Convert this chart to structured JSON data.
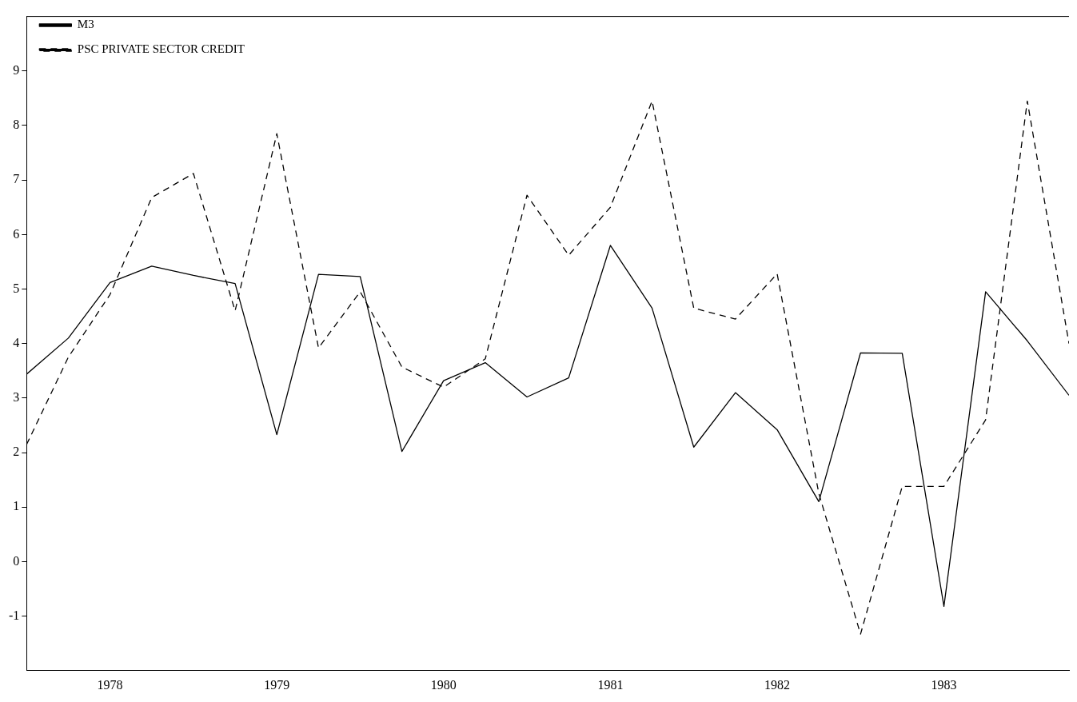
{
  "chart_data": {
    "type": "line",
    "x": [
      1977.5,
      1977.75,
      1978,
      1978.25,
      1978.5,
      1978.75,
      1979,
      1979.25,
      1979.5,
      1979.75,
      1980,
      1980.25,
      1980.5,
      1980.75,
      1981,
      1981.25,
      1981.5,
      1981.75,
      1982,
      1982.25,
      1982.5,
      1982.75,
      1983,
      1983.25,
      1983.5,
      1983.75
    ],
    "series": [
      {
        "name": "M3",
        "color": "#000000",
        "line_style": "solid",
        "values": [
          3.44,
          4.1,
          5.12,
          5.42,
          5.25,
          5.1,
          2.33,
          5.27,
          5.23,
          2.02,
          3.32,
          3.65,
          3.02,
          3.37,
          5.8,
          4.65,
          2.1,
          3.1,
          2.42,
          1.1,
          3.83,
          3.82,
          -0.82,
          4.95,
          4.05,
          3.05
        ]
      },
      {
        "name": "PSC PRIVATE SECTOR CREDIT",
        "color": "#000000",
        "line_style": "dashed",
        "values": [
          2.15,
          3.75,
          4.9,
          6.68,
          7.12,
          4.6,
          7.85,
          3.92,
          4.95,
          3.57,
          3.2,
          3.72,
          6.72,
          5.62,
          6.5,
          8.45,
          4.65,
          4.45,
          5.28,
          1.25,
          -1.33,
          1.38,
          1.38,
          2.6,
          8.45,
          4.0
        ]
      }
    ],
    "xlim": [
      1977.5,
      1983.75
    ],
    "xticks": [
      1978,
      1979,
      1980,
      1981,
      1982,
      1983
    ],
    "ylim": [
      -2,
      10
    ],
    "yticks": [
      -1,
      0,
      1,
      2,
      3,
      4,
      5,
      6,
      7,
      8,
      9
    ],
    "grid": false,
    "legend": "top left",
    "marker": "none"
  }
}
